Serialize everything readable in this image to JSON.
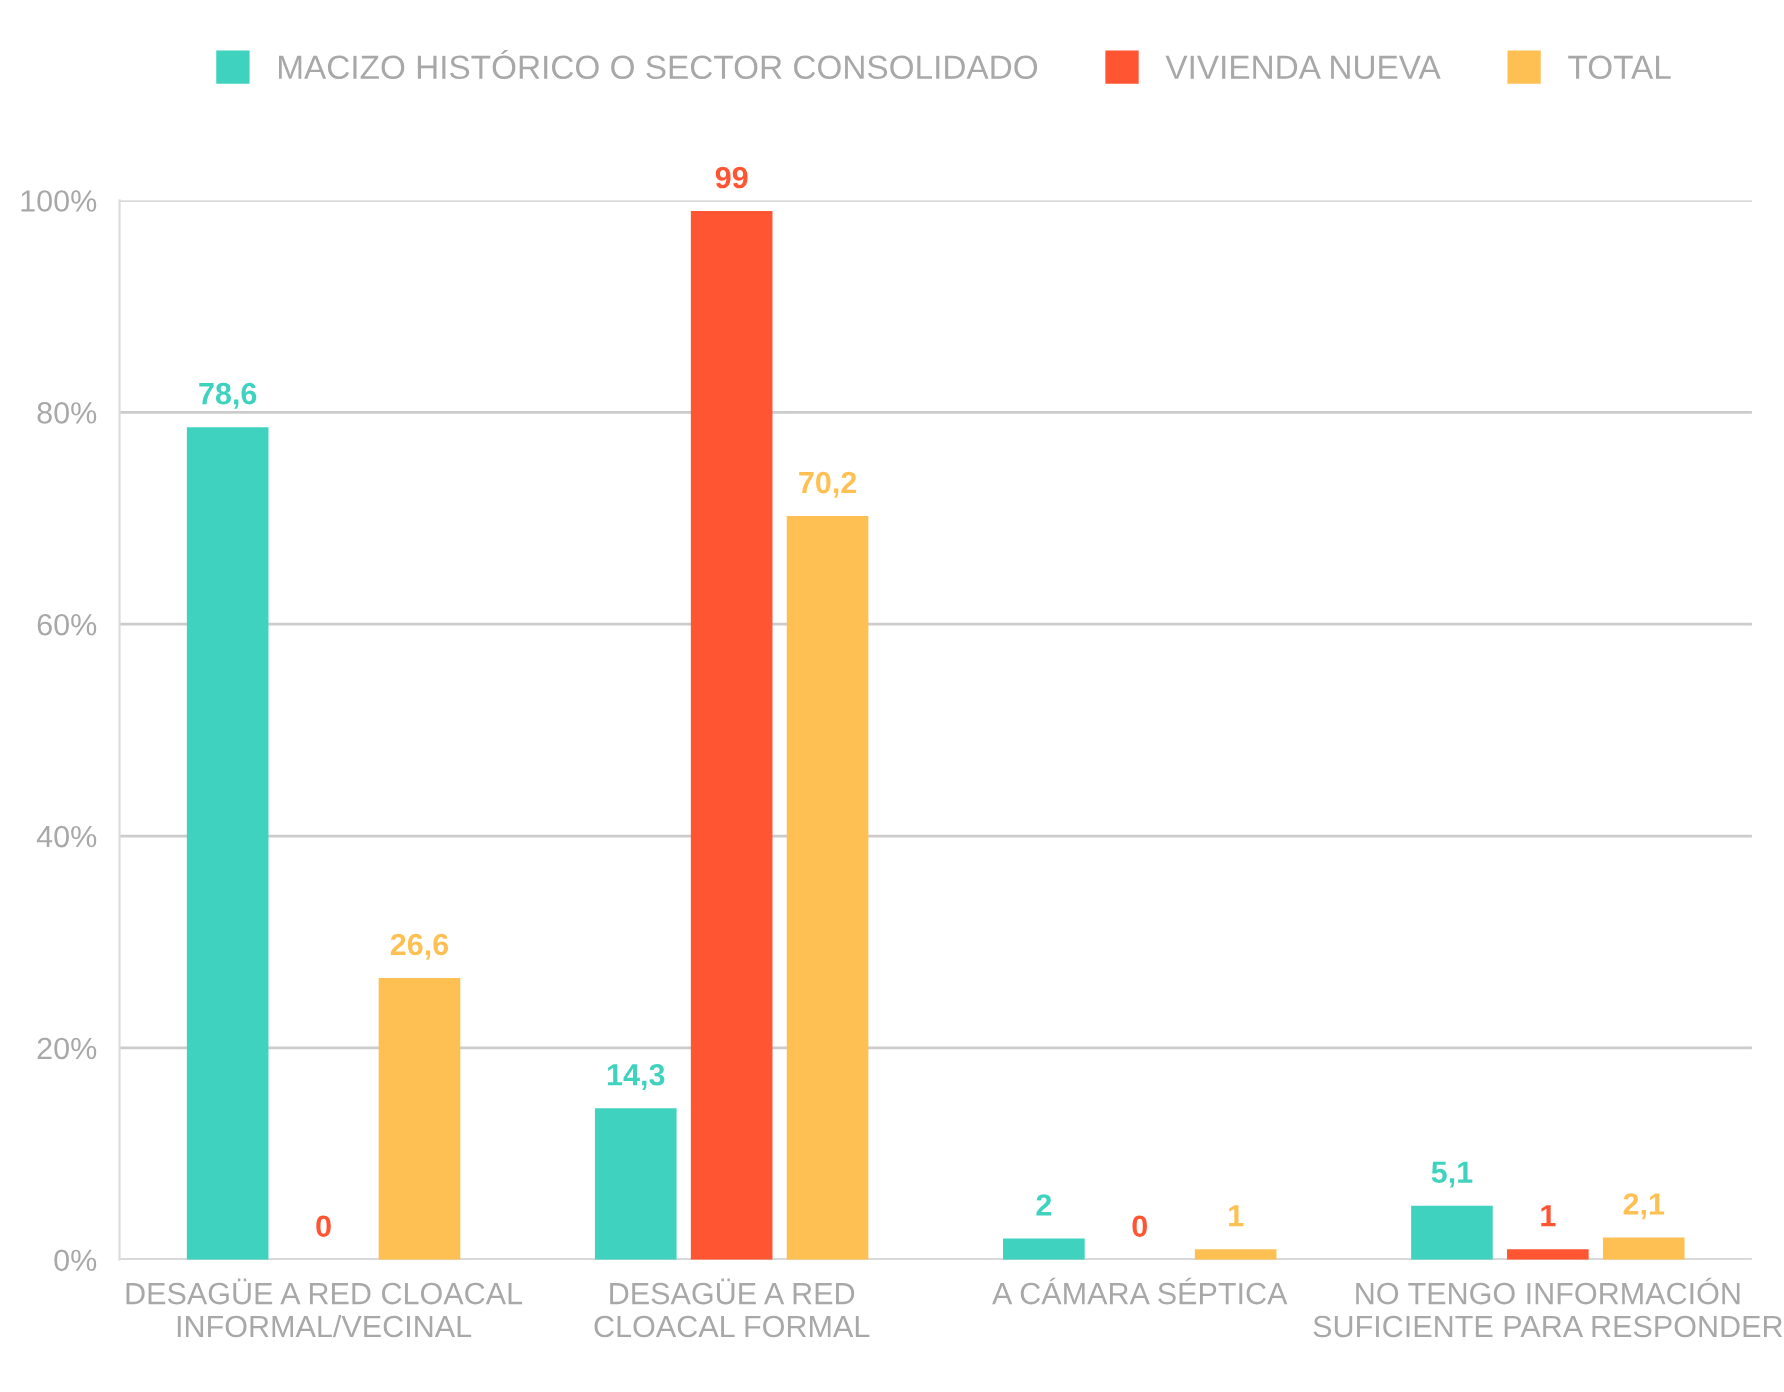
{
  "chart_data": {
    "type": "bar",
    "categories": [
      "DESAGÜE A RED CLOACAL\nINFORMAL/VECINAL",
      "DESAGÜE A RED\nCLOACAL FORMAL",
      "A CÁMARA SÉPTICA",
      "NO TENGO INFORMACIÓN\nSUFICIENTE PARA RESPONDER"
    ],
    "series": [
      {
        "name": "MACIZO HISTÓRICO O SECTOR CONSOLIDADO",
        "color": "#3fd3bf",
        "values": [
          78.6,
          14.3,
          2,
          5.1
        ],
        "value_labels": [
          "78,6",
          "14,3",
          "2",
          "5,1"
        ]
      },
      {
        "name": "VIVIENDA NUEVA",
        "color": "#ff5533",
        "values": [
          0,
          99,
          0,
          1
        ],
        "value_labels": [
          "0",
          "99",
          "0",
          "1"
        ]
      },
      {
        "name": "TOTAL",
        "color": "#ffc053",
        "values": [
          26.6,
          70.2,
          1,
          2.1
        ],
        "value_labels": [
          "26,6",
          "70,2",
          "1",
          "2,1"
        ]
      }
    ],
    "ylim": [
      0,
      100
    ],
    "yticks": [
      {
        "value": 0,
        "label": "0%"
      },
      {
        "value": 20,
        "label": "20%"
      },
      {
        "value": 40,
        "label": "40%"
      },
      {
        "value": 60,
        "label": "60%"
      },
      {
        "value": 80,
        "label": "80%"
      },
      {
        "value": 100,
        "label": "100%"
      }
    ],
    "grid": "y",
    "legend": "top",
    "marker": "square"
  }
}
